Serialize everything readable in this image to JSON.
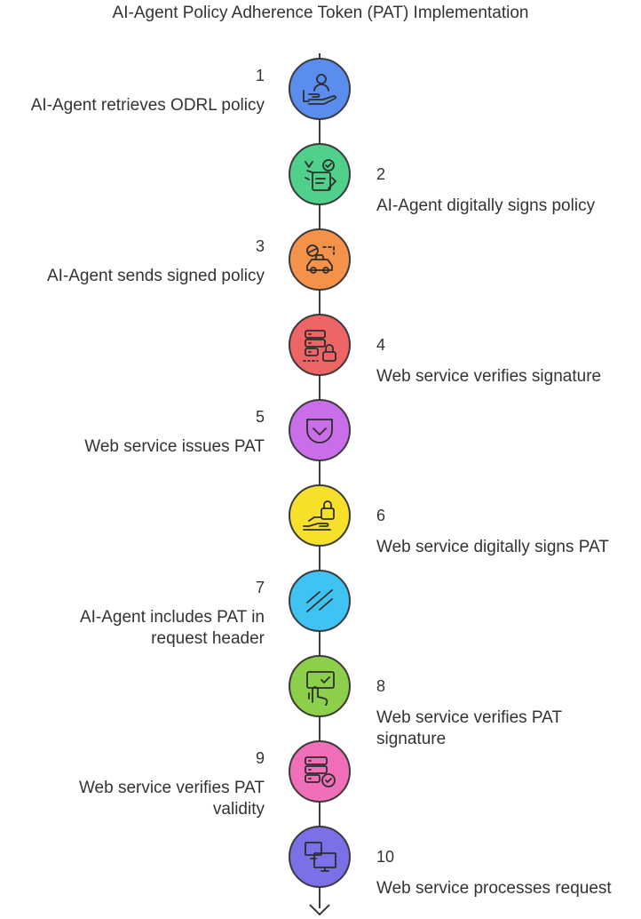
{
  "title": "AI-Agent Policy Adherence Token (PAT) Implementation",
  "steps": [
    {
      "number": "1",
      "label": "AI-Agent retrieves ODRL policy",
      "side": "left",
      "color": "#5b8def",
      "icon": "user-hand-icon"
    },
    {
      "number": "2",
      "label": "AI-Agent digitally signs policy",
      "side": "right",
      "color": "#4fd18b",
      "icon": "signed-document-icon"
    },
    {
      "number": "3",
      "label": "AI-Agent sends signed policy",
      "side": "left",
      "color": "#f4924a",
      "icon": "delivery-vehicle-icon"
    },
    {
      "number": "4",
      "label": "Web service verifies signature",
      "side": "right",
      "color": "#ef6464",
      "icon": "server-lock-icon"
    },
    {
      "number": "5",
      "label": "Web service issues PAT",
      "side": "left",
      "color": "#c96ee8",
      "icon": "pocket-icon"
    },
    {
      "number": "6",
      "label": "Web service digitally signs PAT",
      "side": "right",
      "color": "#f7e02a",
      "icon": "hand-lock-icon"
    },
    {
      "number": "7",
      "label": "AI-Agent includes PAT in request header",
      "side": "left",
      "color": "#3fc3f2",
      "icon": "zendesk-icon"
    },
    {
      "number": "8",
      "label": "Web service verifies PAT signature",
      "side": "right",
      "color": "#8ccf4a",
      "icon": "touch-check-icon"
    },
    {
      "number": "9",
      "label": "Web service verifies PAT validity",
      "side": "left",
      "color": "#f06fb8",
      "icon": "server-check-icon"
    },
    {
      "number": "10",
      "label": "Web service processes request",
      "side": "right",
      "color": "#7b70e8",
      "icon": "computers-icon"
    }
  ]
}
